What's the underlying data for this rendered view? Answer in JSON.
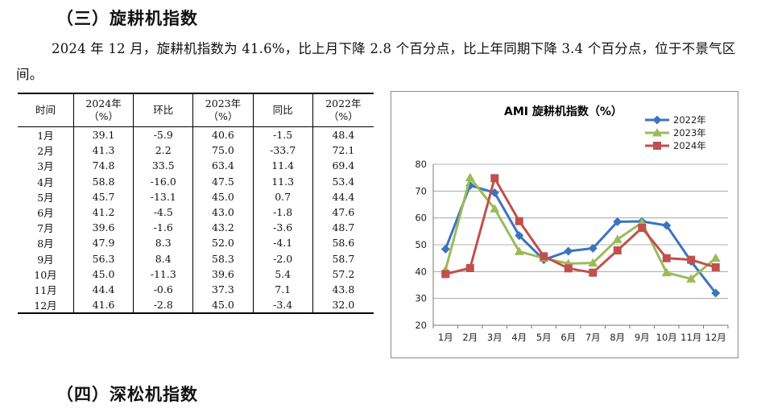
{
  "section3_title": "（三）旋耕机指数",
  "paragraph": "2024 年 12 月，旋耕机指数为 41.6%，比上月下降 2.8 个百分点，比上年同期下降 3.4 个百分点，位于不景气区间。",
  "table": {
    "headers": [
      {
        "l1": "时间",
        "l2": ""
      },
      {
        "l1": "2024年",
        "l2": "（%）"
      },
      {
        "l1": "环比",
        "l2": ""
      },
      {
        "l1": "2023年",
        "l2": "（%）"
      },
      {
        "l1": "同比",
        "l2": ""
      },
      {
        "l1": "2022年",
        "l2": "（%）"
      }
    ],
    "rows": [
      [
        "1月",
        "39.1",
        "-5.9",
        "40.6",
        "-1.5",
        "48.4"
      ],
      [
        "2月",
        "41.3",
        "2.2",
        "75.0",
        "-33.7",
        "72.1"
      ],
      [
        "3月",
        "74.8",
        "33.5",
        "63.4",
        "11.4",
        "69.4"
      ],
      [
        "4月",
        "58.8",
        "-16.0",
        "47.5",
        "11.3",
        "53.4"
      ],
      [
        "5月",
        "45.7",
        "-13.1",
        "45.0",
        "0.7",
        "44.4"
      ],
      [
        "6月",
        "41.2",
        "-4.5",
        "43.0",
        "-1.8",
        "47.6"
      ],
      [
        "7月",
        "39.6",
        "-1.6",
        "43.2",
        "-3.6",
        "48.7"
      ],
      [
        "8月",
        "47.9",
        "8.3",
        "52.0",
        "-4.1",
        "58.6"
      ],
      [
        "9月",
        "56.3",
        "8.4",
        "58.3",
        "-2.0",
        "58.7"
      ],
      [
        "10月",
        "45.0",
        "-11.3",
        "39.6",
        "5.4",
        "57.2"
      ],
      [
        "11月",
        "44.4",
        "-0.6",
        "37.3",
        "7.1",
        "43.8"
      ],
      [
        "12月",
        "41.6",
        "-2.8",
        "45.0",
        "-3.4",
        "32.0"
      ]
    ]
  },
  "chart_data": {
    "type": "line",
    "title": "AMI 旋耕机指数（%）",
    "categories": [
      "1月",
      "2月",
      "3月",
      "4月",
      "5月",
      "6月",
      "7月",
      "8月",
      "9月",
      "10月",
      "11月",
      "12月"
    ],
    "ylim": [
      20,
      80
    ],
    "yticks": [
      20,
      30,
      40,
      50,
      60,
      70,
      80
    ],
    "grid": true,
    "legend": "top-right",
    "series": [
      {
        "name": "2022年",
        "color": "#3b74bd",
        "marker": "diamond",
        "values": [
          48.4,
          72.1,
          69.4,
          53.4,
          44.4,
          47.6,
          48.7,
          58.6,
          58.7,
          57.2,
          43.8,
          32.0
        ]
      },
      {
        "name": "2023年",
        "color": "#9bbb59",
        "marker": "triangle",
        "values": [
          40.6,
          75.0,
          63.4,
          47.5,
          45.0,
          43.0,
          43.2,
          52.0,
          58.3,
          39.6,
          37.3,
          45.0
        ]
      },
      {
        "name": "2024年",
        "color": "#c0504d",
        "marker": "square",
        "values": [
          39.1,
          41.3,
          74.8,
          58.8,
          45.7,
          41.2,
          39.6,
          47.9,
          56.3,
          45.0,
          44.4,
          41.6
        ]
      }
    ]
  },
  "section4_title": "（四）深松机指数"
}
